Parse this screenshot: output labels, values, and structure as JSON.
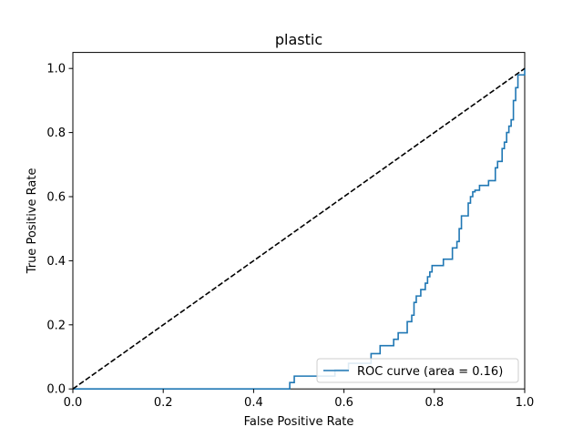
{
  "chart_data": {
    "type": "line",
    "title": "plastic",
    "xlabel": "False Positive Rate",
    "ylabel": "True Positive Rate",
    "xlim": [
      0.0,
      1.0
    ],
    "ylim": [
      0.0,
      1.05
    ],
    "x_ticks": [
      "0.0",
      "0.2",
      "0.4",
      "0.6",
      "0.8",
      "1.0"
    ],
    "y_ticks": [
      "0.0",
      "0.2",
      "0.4",
      "0.6",
      "0.8",
      "1.0"
    ],
    "grid": false,
    "legend_position": "lower-right",
    "colors": {
      "roc": "#1f77b4",
      "chance": "#000000"
    },
    "series": [
      {
        "name": "ROC curve (area = 0.16)",
        "style": "solid-step",
        "x": [
          0.0,
          0.48,
          0.48,
          0.49,
          0.49,
          0.58,
          0.58,
          0.61,
          0.61,
          0.66,
          0.66,
          0.68,
          0.68,
          0.71,
          0.71,
          0.72,
          0.72,
          0.74,
          0.74,
          0.75,
          0.75,
          0.755,
          0.755,
          0.76,
          0.76,
          0.77,
          0.77,
          0.78,
          0.78,
          0.785,
          0.785,
          0.79,
          0.79,
          0.795,
          0.795,
          0.8,
          0.8,
          0.82,
          0.82,
          0.84,
          0.84,
          0.85,
          0.85,
          0.855,
          0.855,
          0.86,
          0.86,
          0.875,
          0.875,
          0.88,
          0.88,
          0.885,
          0.885,
          0.89,
          0.89,
          0.9,
          0.9,
          0.92,
          0.92,
          0.935,
          0.935,
          0.94,
          0.94,
          0.95,
          0.95,
          0.955,
          0.955,
          0.96,
          0.96,
          0.965,
          0.965,
          0.97,
          0.97,
          0.975,
          0.975,
          0.98,
          0.98,
          0.985,
          0.985,
          1.0,
          1.0
        ],
        "y": [
          0.0,
          0.0,
          0.02,
          0.02,
          0.04,
          0.04,
          0.06,
          0.06,
          0.08,
          0.08,
          0.11,
          0.11,
          0.135,
          0.135,
          0.155,
          0.155,
          0.175,
          0.175,
          0.21,
          0.21,
          0.23,
          0.23,
          0.27,
          0.27,
          0.29,
          0.29,
          0.31,
          0.31,
          0.33,
          0.33,
          0.35,
          0.35,
          0.365,
          0.365,
          0.385,
          0.385,
          0.385,
          0.385,
          0.405,
          0.405,
          0.44,
          0.44,
          0.46,
          0.46,
          0.5,
          0.5,
          0.54,
          0.54,
          0.58,
          0.58,
          0.6,
          0.6,
          0.615,
          0.615,
          0.62,
          0.62,
          0.635,
          0.635,
          0.65,
          0.65,
          0.69,
          0.69,
          0.71,
          0.71,
          0.75,
          0.75,
          0.77,
          0.77,
          0.8,
          0.8,
          0.82,
          0.82,
          0.84,
          0.84,
          0.9,
          0.9,
          0.94,
          0.94,
          0.98,
          0.98,
          1.0
        ]
      },
      {
        "name": "chance",
        "style": "dashed",
        "x": [
          0.0,
          1.0
        ],
        "y": [
          0.0,
          1.0
        ]
      }
    ]
  }
}
